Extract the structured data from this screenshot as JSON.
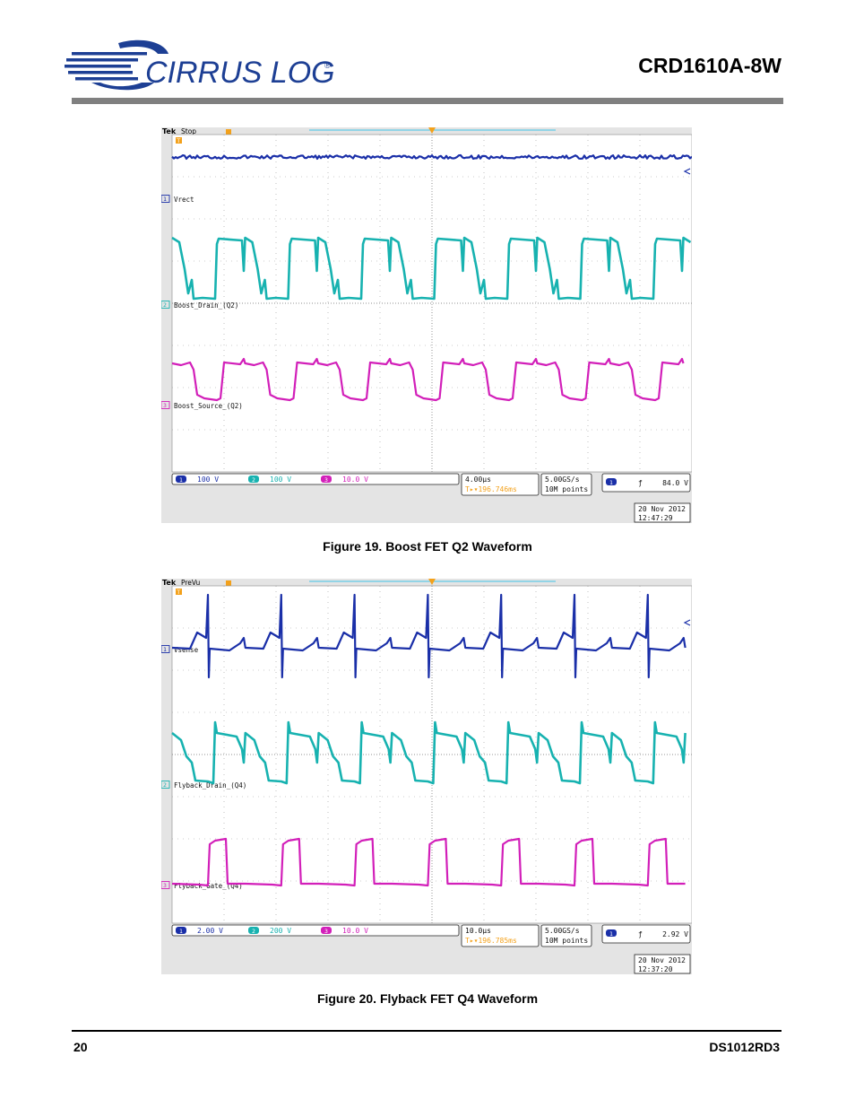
{
  "header": {
    "logo_text": "CIRRUS LOGIC",
    "logo_mark": "®",
    "doc_title": "CRD1610A-8W"
  },
  "figures": [
    {
      "caption": "Figure 19.  Boost FET Q2 Waveform",
      "scope": {
        "brand": "Tek",
        "state": "Stop",
        "trigger_marker": "T",
        "channels": [
          {
            "num": "1",
            "label": "Vrect",
            "scale": "100 V",
            "color": "#1a2fa8"
          },
          {
            "num": "2",
            "label": "Boost_Drain_(Q2)",
            "scale": "100 V",
            "color": "#17b2b0"
          },
          {
            "num": "3",
            "label": "Boost_Source_(Q2)",
            "scale": "10.0 V",
            "color": "#d21fb9"
          }
        ],
        "timebase": "4.00μs",
        "trigger_pos": "T▸▾196.746ms",
        "sample_rate": "5.00GS/s",
        "record_length": "10M points",
        "trigger_channel": "1",
        "trigger_slope": "ƒ",
        "trigger_level": "84.0 V",
        "date": "20 Nov 2012",
        "time": "12:47:29"
      }
    },
    {
      "caption": "Figure 20.  Flyback FET Q4 Waveform",
      "scope": {
        "brand": "Tek",
        "state": "PreVu",
        "trigger_marker": "T",
        "channels": [
          {
            "num": "1",
            "label": "Vsense",
            "scale": "2.00 V",
            "color": "#1a2fa8"
          },
          {
            "num": "2",
            "label": "Flyback_Drain_(Q4)",
            "scale": "200 V",
            "color": "#17b2b0"
          },
          {
            "num": "3",
            "label": "Flyback_Gate_(Q4)",
            "scale": "10.0 V",
            "color": "#d21fb9"
          }
        ],
        "timebase": "10.0μs",
        "trigger_pos": "T▸▾196.785ms",
        "sample_rate": "5.00GS/s",
        "record_length": "10M points",
        "trigger_channel": "1",
        "trigger_slope": "ƒ",
        "trigger_level": "2.92 V",
        "date": "20 Nov 2012",
        "time": "12:37:20"
      }
    }
  ],
  "footer": {
    "page_number": "20",
    "doc_id": "DS1012RD3"
  },
  "colors": {
    "logo_blue": "#1d3f94",
    "rule_gray": "#808080",
    "scope_bg": "#e4e4e4",
    "trigger_orange": "#f3a11b"
  }
}
